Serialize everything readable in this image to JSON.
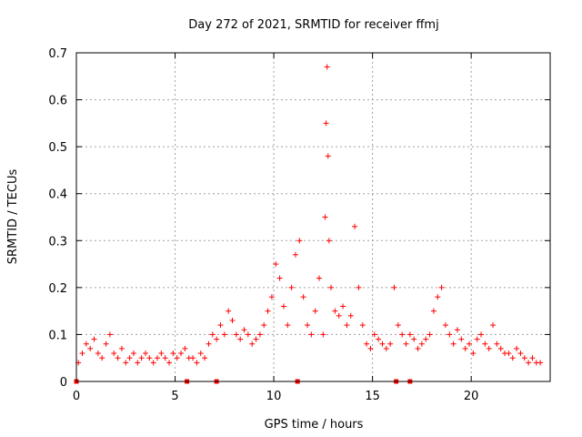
{
  "chart_data": {
    "type": "scatter",
    "title": "Day 272 of 2021, SRMTID for receiver ffmj",
    "xlabel": "GPS time / hours",
    "ylabel": "SRMTID / TECUs",
    "xlim": [
      0,
      24
    ],
    "ylim": [
      0,
      0.7
    ],
    "xticks": [
      0,
      5,
      10,
      15,
      20
    ],
    "yticks": [
      0,
      0.1,
      0.2,
      0.3,
      0.4,
      0.5,
      0.6,
      0.7
    ],
    "grid": true,
    "marker": "+",
    "color": "#ff0000",
    "series": [
      {
        "name": "SRMTID",
        "x": [
          0.1,
          0.3,
          0.5,
          0.7,
          0.9,
          1.1,
          1.3,
          1.5,
          1.7,
          1.9,
          2.1,
          2.3,
          2.5,
          2.7,
          2.9,
          3.1,
          3.3,
          3.5,
          3.7,
          3.9,
          4.1,
          4.3,
          4.5,
          4.7,
          4.9,
          5.1,
          5.3,
          5.5,
          5.7,
          5.9,
          6.1,
          6.3,
          6.5,
          6.7,
          6.9,
          7.1,
          7.3,
          7.5,
          7.7,
          7.9,
          8.1,
          8.3,
          8.5,
          8.7,
          8.9,
          9.1,
          9.3,
          9.5,
          9.7,
          9.9,
          10.1,
          10.3,
          10.5,
          10.7,
          10.9,
          11.1,
          11.3,
          11.5,
          11.7,
          11.9,
          12.1,
          12.3,
          12.5,
          12.6,
          12.65,
          12.7,
          12.75,
          12.8,
          12.9,
          13.1,
          13.3,
          13.5,
          13.7,
          13.9,
          14.1,
          14.3,
          14.5,
          14.7,
          14.9,
          15.1,
          15.3,
          15.5,
          15.7,
          15.9,
          16.1,
          16.3,
          16.5,
          16.7,
          16.9,
          17.1,
          17.3,
          17.5,
          17.7,
          17.9,
          18.1,
          18.3,
          18.5,
          18.7,
          18.9,
          19.1,
          19.3,
          19.5,
          19.7,
          19.9,
          20.1,
          20.3,
          20.5,
          20.7,
          20.9,
          21.1,
          21.3,
          21.5,
          21.7,
          21.9,
          22.1,
          22.3,
          22.5,
          22.7,
          22.9,
          23.1,
          23.3,
          23.5
        ],
        "y": [
          0.04,
          0.06,
          0.08,
          0.07,
          0.09,
          0.06,
          0.05,
          0.08,
          0.1,
          0.06,
          0.05,
          0.07,
          0.04,
          0.05,
          0.06,
          0.04,
          0.05,
          0.06,
          0.05,
          0.04,
          0.05,
          0.06,
          0.05,
          0.04,
          0.06,
          0.05,
          0.06,
          0.07,
          0.05,
          0.05,
          0.04,
          0.06,
          0.05,
          0.08,
          0.1,
          0.09,
          0.12,
          0.1,
          0.15,
          0.13,
          0.1,
          0.09,
          0.11,
          0.1,
          0.08,
          0.09,
          0.1,
          0.12,
          0.15,
          0.18,
          0.25,
          0.22,
          0.16,
          0.12,
          0.2,
          0.27,
          0.3,
          0.18,
          0.12,
          0.1,
          0.15,
          0.22,
          0.1,
          0.35,
          0.55,
          0.67,
          0.48,
          0.3,
          0.2,
          0.15,
          0.14,
          0.16,
          0.12,
          0.14,
          0.33,
          0.2,
          0.12,
          0.08,
          0.07,
          0.1,
          0.09,
          0.08,
          0.07,
          0.08,
          0.2,
          0.12,
          0.1,
          0.08,
          0.1,
          0.09,
          0.07,
          0.08,
          0.09,
          0.1,
          0.15,
          0.18,
          0.2,
          0.12,
          0.1,
          0.08,
          0.11,
          0.09,
          0.07,
          0.08,
          0.06,
          0.09,
          0.1,
          0.08,
          0.07,
          0.12,
          0.08,
          0.07,
          0.06,
          0.06,
          0.05,
          0.07,
          0.06,
          0.05,
          0.04,
          0.05,
          0.04,
          0.04
        ]
      }
    ],
    "axis_markers_x": [
      0,
      5.6,
      7.1,
      11.2,
      16.2,
      16.9
    ]
  }
}
